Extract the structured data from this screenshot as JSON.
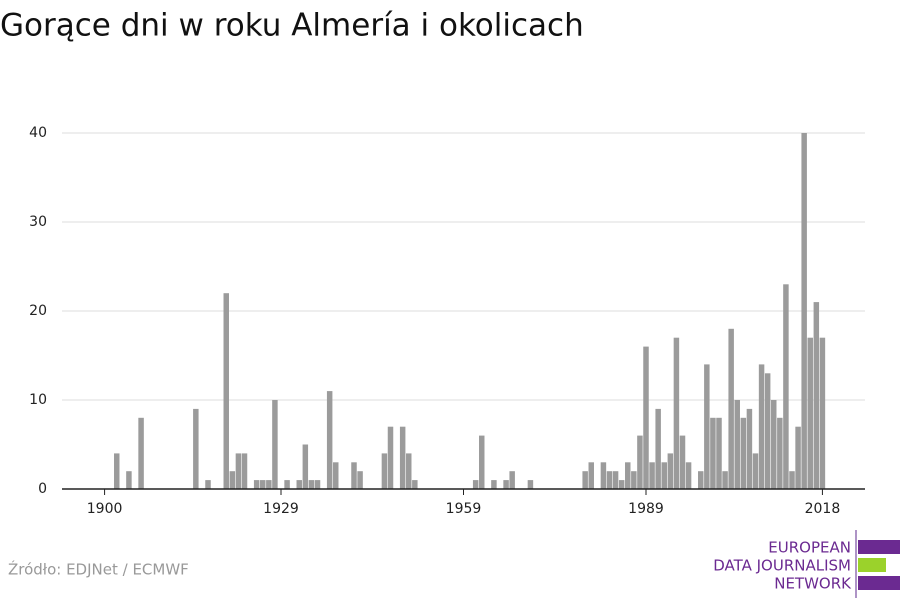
{
  "chart_data": {
    "type": "bar",
    "title": "Gorące dni w roku Almería i okolicach",
    "source": "Źródło: EDJNet / ECMWF",
    "logo": [
      "EUROPEAN",
      "DATA JOURNALISM",
      "NETWORK"
    ],
    "color": "#9b9b9b",
    "x": [
      1902,
      1904,
      1906,
      1915,
      1917,
      1920,
      1921,
      1922,
      1923,
      1925,
      1926,
      1927,
      1928,
      1930,
      1932,
      1933,
      1934,
      1935,
      1937,
      1938,
      1941,
      1942,
      1946,
      1947,
      1949,
      1950,
      1951,
      1961,
      1962,
      1964,
      1966,
      1967,
      1970,
      1979,
      1980,
      1982,
      1983,
      1984,
      1985,
      1986,
      1987,
      1988,
      1989,
      1990,
      1991,
      1992,
      1993,
      1994,
      1995,
      1996,
      1998,
      1999,
      2000,
      2001,
      2002,
      2003,
      2004,
      2005,
      2006,
      2007,
      2008,
      2009,
      2010,
      2011,
      2012,
      2013,
      2014,
      2015,
      2016,
      2017,
      2018
    ],
    "values": [
      4,
      2,
      8,
      9,
      1,
      22,
      2,
      4,
      4,
      1,
      1,
      1,
      10,
      1,
      1,
      5,
      1,
      1,
      11,
      3,
      3,
      2,
      4,
      7,
      7,
      4,
      1,
      1,
      6,
      1,
      1,
      2,
      1,
      2,
      3,
      3,
      2,
      2,
      1,
      3,
      2,
      6,
      16,
      3,
      9,
      3,
      4,
      17,
      6,
      3,
      2,
      14,
      8,
      8,
      2,
      18,
      10,
      8,
      9,
      4,
      14,
      13,
      10,
      8,
      23,
      2,
      7,
      40,
      17,
      21,
      17
    ],
    "xlim": [
      1893,
      2025
    ],
    "xticks": [
      1900,
      1929,
      1959,
      1989,
      2018
    ],
    "ylim": [
      0,
      40
    ],
    "yticks": [
      0,
      10,
      20,
      30,
      40
    ],
    "grid": true
  }
}
